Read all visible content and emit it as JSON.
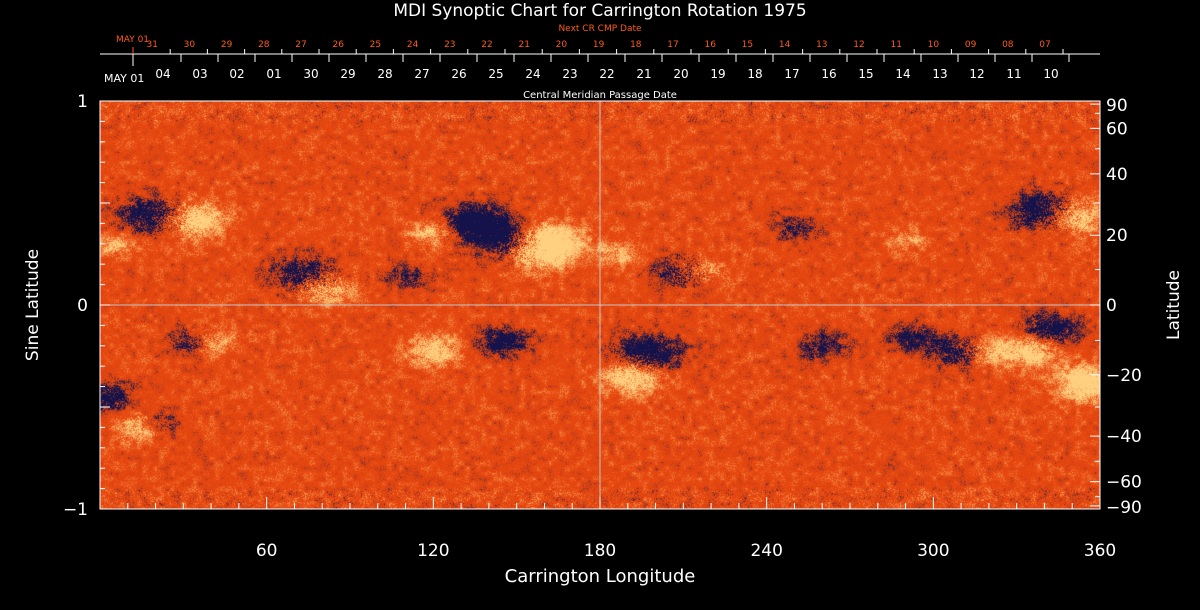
{
  "chart_data": {
    "type": "heatmap",
    "title": "MDI Synoptic Chart for Carrington Rotation 1975",
    "xlabel": "Carrington Longitude",
    "ylabel_left": "Sine Latitude",
    "ylabel_right": "Latitude",
    "xlim": [
      0,
      360
    ],
    "ylim": [
      -1,
      1
    ],
    "x_ticks": [
      60,
      120,
      180,
      240,
      300,
      360
    ],
    "y_left_ticks": [
      {
        "value": -1,
        "label": "−1"
      },
      {
        "value": 0,
        "label": "0"
      },
      {
        "value": 1,
        "label": "1"
      }
    ],
    "y_right_ticks": [
      {
        "value": 90,
        "label": "90"
      },
      {
        "value": 60,
        "label": "60"
      },
      {
        "value": 40,
        "label": "40"
      },
      {
        "value": 20,
        "label": "20"
      },
      {
        "value": 0,
        "label": "0"
      },
      {
        "value": -20,
        "label": "−20"
      },
      {
        "value": -40,
        "label": "−40"
      },
      {
        "value": -60,
        "label": "−60"
      },
      {
        "value": -90,
        "label": "−90"
      }
    ],
    "reference_lines": {
      "longitude": 180,
      "sine_latitude": 0
    },
    "top_axis_current": {
      "label": "Central Meridian Passage Date",
      "start_label": "MAY 01",
      "dates": [
        "04",
        "03",
        "02",
        "01",
        "30",
        "29",
        "28",
        "27",
        "26",
        "25",
        "24",
        "23",
        "22",
        "21",
        "20",
        "19",
        "18",
        "17",
        "16",
        "15",
        "14",
        "13",
        "12",
        "11",
        "10"
      ]
    },
    "top_axis_next": {
      "label": "Next CR CMP Date",
      "start_label": "MAY 01",
      "dates": [
        "31",
        "30",
        "29",
        "28",
        "27",
        "26",
        "25",
        "24",
        "23",
        "22",
        "21",
        "20",
        "19",
        "18",
        "17",
        "16",
        "15",
        "14",
        "13",
        "12",
        "11",
        "10",
        "09",
        "08",
        "07"
      ]
    },
    "colormap": {
      "background": "#e84a10",
      "light": "#ffd080",
      "dark": "#14124a",
      "grid": "#c6c6c6"
    },
    "regions": [
      {
        "lon": 20,
        "sinlat": 0.44,
        "polarity": "negative",
        "strength": 1.0
      },
      {
        "lon": 32,
        "sinlat": 0.42,
        "polarity": "positive",
        "strength": 1.0
      },
      {
        "lon": 75,
        "sinlat": 0.14,
        "polarity": "negative",
        "strength": 1.0
      },
      {
        "lon": 80,
        "sinlat": 0.09,
        "polarity": "positive",
        "strength": 0.9
      },
      {
        "lon": 135,
        "sinlat": 0.4,
        "polarity": "negative",
        "strength": 1.0
      },
      {
        "lon": 150,
        "sinlat": 0.3,
        "polarity": "negative",
        "strength": 1.0
      },
      {
        "lon": 157,
        "sinlat": 0.27,
        "polarity": "positive",
        "strength": 1.0
      },
      {
        "lon": 162,
        "sinlat": 0.31,
        "polarity": "positive",
        "strength": 0.9
      },
      {
        "lon": 120,
        "sinlat": 0.36,
        "polarity": "positive",
        "strength": 0.6
      },
      {
        "lon": 340,
        "sinlat": 0.46,
        "polarity": "negative",
        "strength": 1.0
      },
      {
        "lon": 350,
        "sinlat": 0.44,
        "polarity": "positive",
        "strength": 0.9
      },
      {
        "lon": 210,
        "sinlat": 0.16,
        "polarity": "negative",
        "strength": 0.8
      },
      {
        "lon": 215,
        "sinlat": 0.17,
        "polarity": "positive",
        "strength": 0.7
      },
      {
        "lon": 197,
        "sinlat": -0.24,
        "polarity": "negative",
        "strength": 1.0
      },
      {
        "lon": 192,
        "sinlat": -0.34,
        "polarity": "positive",
        "strength": 0.9
      },
      {
        "lon": 120,
        "sinlat": -0.22,
        "polarity": "positive",
        "strength": 0.7
      },
      {
        "lon": 145,
        "sinlat": -0.18,
        "polarity": "negative",
        "strength": 0.7
      },
      {
        "lon": 310,
        "sinlat": -0.23,
        "polarity": "negative",
        "strength": 0.8
      },
      {
        "lon": 318,
        "sinlat": -0.23,
        "polarity": "positive",
        "strength": 0.7
      },
      {
        "lon": 335,
        "sinlat": -0.22,
        "polarity": "positive",
        "strength": 0.8
      },
      {
        "lon": 342,
        "sinlat": -0.12,
        "polarity": "negative",
        "strength": 0.8
      },
      {
        "lon": 356,
        "sinlat": -0.38,
        "polarity": "positive",
        "strength": 0.9
      },
      {
        "lon": 33,
        "sinlat": -0.18,
        "polarity": "negative",
        "strength": 0.6
      },
      {
        "lon": 40,
        "sinlat": -0.18,
        "polarity": "positive",
        "strength": 0.6
      },
      {
        "lon": 14,
        "sinlat": -0.6,
        "polarity": "positive",
        "strength": 0.6
      },
      {
        "lon": 22,
        "sinlat": -0.58,
        "polarity": "negative",
        "strength": 0.5
      },
      {
        "lon": 2,
        "sinlat": -0.45,
        "polarity": "negative",
        "strength": 0.7
      },
      {
        "lon": 260,
        "sinlat": -0.2,
        "polarity": "negative",
        "strength": 0.6
      },
      {
        "lon": 292,
        "sinlat": -0.16,
        "polarity": "negative",
        "strength": 0.6
      },
      {
        "lon": 110,
        "sinlat": 0.14,
        "polarity": "negative",
        "strength": 0.5
      },
      {
        "lon": 6,
        "sinlat": 0.3,
        "polarity": "positive",
        "strength": 0.5
      },
      {
        "lon": 186,
        "sinlat": 0.25,
        "polarity": "positive",
        "strength": 0.5
      },
      {
        "lon": 250,
        "sinlat": 0.38,
        "polarity": "negative",
        "strength": 0.5
      },
      {
        "lon": 290,
        "sinlat": 0.32,
        "polarity": "positive",
        "strength": 0.4
      }
    ]
  }
}
